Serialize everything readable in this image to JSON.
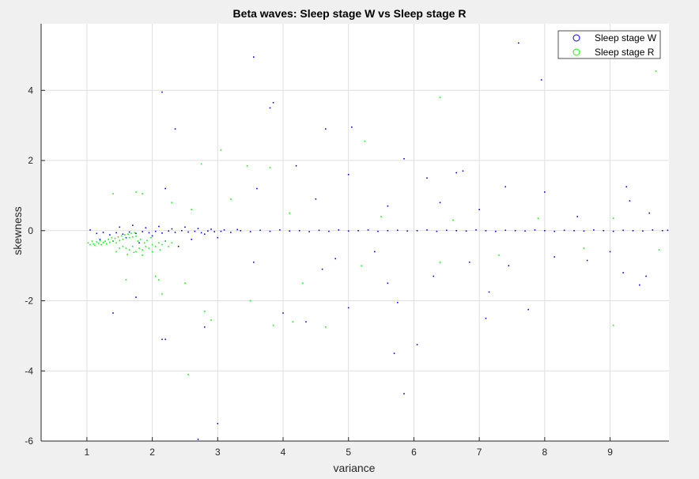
{
  "chart_data": {
    "type": "scatter",
    "title": "Beta waves: Sleep stage W vs Sleep stage R",
    "xlabel": "variance",
    "ylabel": "skewness",
    "xlim": [
      0.3,
      9.9
    ],
    "ylim": [
      -6,
      5.9
    ],
    "xticks": [
      1,
      2,
      3,
      4,
      5,
      6,
      7,
      8,
      9
    ],
    "yticks": [
      -6,
      -4,
      -2,
      0,
      2,
      4
    ],
    "grid": true,
    "legend_position": "top-right",
    "series": [
      {
        "name": "Sleep stage W",
        "color": "#0000ff",
        "points": [
          [
            1.05,
            0.02
          ],
          [
            1.15,
            -0.08
          ],
          [
            1.25,
            -0.05
          ],
          [
            1.35,
            -0.12
          ],
          [
            1.45,
            -0.06
          ],
          [
            1.55,
            -0.1
          ],
          [
            1.65,
            -0.04
          ],
          [
            1.75,
            -0.08
          ],
          [
            1.85,
            -0.03
          ],
          [
            1.95,
            -0.06
          ],
          [
            2.05,
            -0.02
          ],
          [
            2.15,
            -0.07
          ],
          [
            2.25,
            -0.01
          ],
          [
            2.35,
            -0.05
          ],
          [
            2.45,
            0.0
          ],
          [
            2.55,
            -0.04
          ],
          [
            2.65,
            -0.02
          ],
          [
            2.75,
            -0.06
          ],
          [
            2.85,
            -0.01
          ],
          [
            2.95,
            -0.03
          ],
          [
            1.2,
            -0.25
          ],
          [
            1.4,
            -0.3
          ],
          [
            1.6,
            -0.2
          ],
          [
            1.8,
            -0.35
          ],
          [
            2.0,
            -0.15
          ],
          [
            2.2,
            -0.3
          ],
          [
            2.4,
            -0.45
          ],
          [
            2.6,
            -0.25
          ],
          [
            2.8,
            -0.1
          ],
          [
            3.0,
            -0.2
          ],
          [
            1.5,
            0.1
          ],
          [
            1.7,
            0.15
          ],
          [
            1.9,
            0.08
          ],
          [
            2.1,
            0.12
          ],
          [
            2.3,
            0.05
          ],
          [
            2.5,
            0.1
          ],
          [
            2.7,
            0.06
          ],
          [
            2.9,
            0.04
          ],
          [
            3.1,
            0.02
          ],
          [
            3.3,
            0.03
          ],
          [
            3.05,
            -0.02
          ],
          [
            3.2,
            -0.05
          ],
          [
            3.35,
            0.0
          ],
          [
            3.5,
            -0.03
          ],
          [
            3.65,
            0.01
          ],
          [
            3.8,
            -0.02
          ],
          [
            3.95,
            0.02
          ],
          [
            4.1,
            -0.01
          ],
          [
            4.25,
            0.0
          ],
          [
            4.4,
            -0.03
          ],
          [
            4.55,
            0.01
          ],
          [
            4.7,
            -0.02
          ],
          [
            4.85,
            0.02
          ],
          [
            5.0,
            -0.01
          ],
          [
            5.15,
            0.0
          ],
          [
            5.3,
            0.02
          ],
          [
            5.45,
            -0.02
          ],
          [
            5.6,
            0.0
          ],
          [
            5.75,
            0.01
          ],
          [
            5.9,
            -0.01
          ],
          [
            6.05,
            0.0
          ],
          [
            6.2,
            0.02
          ],
          [
            6.35,
            -0.02
          ],
          [
            6.5,
            0.01
          ],
          [
            6.65,
            0.0
          ],
          [
            6.8,
            -0.01
          ],
          [
            6.95,
            0.02
          ],
          [
            7.1,
            0.0
          ],
          [
            7.25,
            -0.02
          ],
          [
            7.4,
            0.01
          ],
          [
            7.55,
            0.0
          ],
          [
            7.7,
            -0.01
          ],
          [
            7.85,
            0.02
          ],
          [
            8.0,
            0.0
          ],
          [
            8.15,
            -0.02
          ],
          [
            8.3,
            0.01
          ],
          [
            8.45,
            0.0
          ],
          [
            8.6,
            -0.01
          ],
          [
            8.75,
            0.02
          ],
          [
            8.9,
            0.0
          ],
          [
            9.05,
            -0.02
          ],
          [
            9.2,
            0.01
          ],
          [
            9.35,
            0.0
          ],
          [
            9.5,
            -0.01
          ],
          [
            9.65,
            0.02
          ],
          [
            9.8,
            0.0
          ],
          [
            9.88,
            0.01
          ],
          [
            2.15,
            3.95
          ],
          [
            2.35,
            2.9
          ],
          [
            3.55,
            4.95
          ],
          [
            3.8,
            3.5
          ],
          [
            3.85,
            3.65
          ],
          [
            4.65,
            2.9
          ],
          [
            5.05,
            2.95
          ],
          [
            7.6,
            5.35
          ],
          [
            7.95,
            4.3
          ],
          [
            5.85,
            2.05
          ],
          [
            4.2,
            1.85
          ],
          [
            5.0,
            1.6
          ],
          [
            6.2,
            1.5
          ],
          [
            6.65,
            1.65
          ],
          [
            6.75,
            1.7
          ],
          [
            7.4,
            1.25
          ],
          [
            8.0,
            1.1
          ],
          [
            9.25,
            1.25
          ],
          [
            9.3,
            0.85
          ],
          [
            2.2,
            1.2
          ],
          [
            3.6,
            1.2
          ],
          [
            4.5,
            0.9
          ],
          [
            5.6,
            0.7
          ],
          [
            6.4,
            0.8
          ],
          [
            7.0,
            0.6
          ],
          [
            8.5,
            0.4
          ],
          [
            9.6,
            0.5
          ],
          [
            2.15,
            -3.1
          ],
          [
            2.2,
            -3.1
          ],
          [
            2.8,
            -2.75
          ],
          [
            3.0,
            -5.5
          ],
          [
            4.0,
            -2.35
          ],
          [
            4.35,
            -2.6
          ],
          [
            5.0,
            -2.2
          ],
          [
            5.85,
            -4.65
          ],
          [
            6.05,
            -3.25
          ],
          [
            5.75,
            -2.05
          ],
          [
            5.7,
            -3.5
          ],
          [
            7.1,
            -2.5
          ],
          [
            7.75,
            -2.25
          ],
          [
            7.15,
            -1.75
          ],
          [
            9.2,
            -1.2
          ],
          [
            9.45,
            -1.55
          ],
          [
            9.55,
            -1.3
          ],
          [
            6.3,
            -1.3
          ],
          [
            5.6,
            -1.5
          ],
          [
            4.6,
            -1.1
          ],
          [
            3.55,
            -0.9
          ],
          [
            4.8,
            -0.8
          ],
          [
            5.4,
            -0.6
          ],
          [
            6.85,
            -0.9
          ],
          [
            7.45,
            -1.0
          ],
          [
            8.15,
            -0.75
          ],
          [
            8.65,
            -0.85
          ],
          [
            9.0,
            -0.6
          ],
          [
            1.4,
            -2.35
          ],
          [
            1.75,
            -1.9
          ],
          [
            2.7,
            -5.95
          ]
        ]
      },
      {
        "name": "Sleep stage R",
        "color": "#00ff00",
        "points": [
          [
            1.02,
            -0.35
          ],
          [
            1.05,
            -0.4
          ],
          [
            1.08,
            -0.3
          ],
          [
            1.1,
            -0.38
          ],
          [
            1.12,
            -0.42
          ],
          [
            1.15,
            -0.32
          ],
          [
            1.18,
            -0.36
          ],
          [
            1.2,
            -0.28
          ],
          [
            1.22,
            -0.4
          ],
          [
            1.25,
            -0.34
          ],
          [
            1.28,
            -0.3
          ],
          [
            1.3,
            -0.38
          ],
          [
            1.33,
            -0.25
          ],
          [
            1.35,
            -0.33
          ],
          [
            1.38,
            -0.2
          ],
          [
            1.4,
            -0.3
          ],
          [
            1.43,
            -0.22
          ],
          [
            1.45,
            -0.35
          ],
          [
            1.48,
            -0.18
          ],
          [
            1.5,
            -0.28
          ],
          [
            1.53,
            -0.15
          ],
          [
            1.55,
            -0.25
          ],
          [
            1.58,
            -0.12
          ],
          [
            1.6,
            -0.22
          ],
          [
            1.63,
            -0.1
          ],
          [
            1.65,
            -0.2
          ],
          [
            1.68,
            -0.08
          ],
          [
            1.7,
            -0.18
          ],
          [
            1.73,
            -0.06
          ],
          [
            1.75,
            -0.16
          ],
          [
            1.6,
            -0.5
          ],
          [
            1.65,
            -0.55
          ],
          [
            1.7,
            -0.45
          ],
          [
            1.75,
            -0.6
          ],
          [
            1.8,
            -0.5
          ],
          [
            1.85,
            -0.55
          ],
          [
            1.9,
            -0.45
          ],
          [
            1.95,
            -0.5
          ],
          [
            2.0,
            -0.4
          ],
          [
            2.05,
            -0.45
          ],
          [
            2.1,
            -0.35
          ],
          [
            2.15,
            -0.4
          ],
          [
            2.2,
            -0.3
          ],
          [
            2.25,
            -0.45
          ],
          [
            2.3,
            -0.35
          ],
          [
            1.78,
            -0.3
          ],
          [
            1.82,
            -0.25
          ],
          [
            1.88,
            -0.35
          ],
          [
            1.92,
            -0.28
          ],
          [
            1.98,
            -0.2
          ],
          [
            1.55,
            -0.45
          ],
          [
            1.5,
            -0.5
          ],
          [
            1.45,
            -0.6
          ],
          [
            1.62,
            -0.68
          ],
          [
            1.72,
            -0.62
          ],
          [
            1.85,
            -0.7
          ],
          [
            2.0,
            -0.6
          ],
          [
            2.12,
            -0.55
          ],
          [
            1.4,
            1.05
          ],
          [
            1.75,
            1.1
          ],
          [
            1.85,
            1.05
          ],
          [
            2.75,
            1.9
          ],
          [
            3.05,
            2.3
          ],
          [
            3.45,
            1.85
          ],
          [
            5.25,
            2.55
          ],
          [
            6.4,
            3.8
          ],
          [
            9.7,
            4.55
          ],
          [
            3.8,
            1.8
          ],
          [
            2.3,
            0.8
          ],
          [
            2.6,
            0.6
          ],
          [
            3.2,
            0.9
          ],
          [
            4.1,
            0.5
          ],
          [
            5.5,
            0.4
          ],
          [
            6.6,
            0.3
          ],
          [
            7.9,
            0.35
          ],
          [
            9.05,
            0.35
          ],
          [
            1.6,
            -1.4
          ],
          [
            2.05,
            -1.3
          ],
          [
            2.1,
            -1.4
          ],
          [
            2.15,
            -1.8
          ],
          [
            2.5,
            -1.5
          ],
          [
            2.8,
            -2.3
          ],
          [
            2.9,
            -2.55
          ],
          [
            3.5,
            -2.0
          ],
          [
            3.85,
            -2.7
          ],
          [
            4.15,
            -2.6
          ],
          [
            4.65,
            -2.75
          ],
          [
            9.05,
            -2.7
          ],
          [
            2.55,
            -4.1
          ],
          [
            4.3,
            -1.5
          ],
          [
            5.2,
            -1.0
          ],
          [
            6.4,
            -0.9
          ],
          [
            7.3,
            -0.7
          ],
          [
            8.6,
            -0.5
          ],
          [
            9.75,
            -0.55
          ]
        ]
      }
    ]
  }
}
